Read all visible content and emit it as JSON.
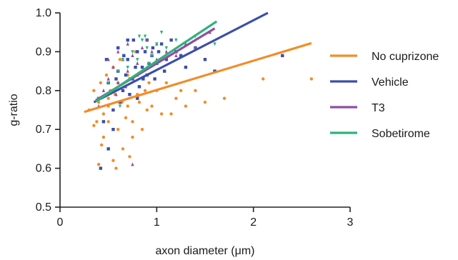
{
  "chart_data": {
    "type": "scatter",
    "xlabel": "axon diameter (μm)",
    "ylabel": "g-ratio",
    "xlim": [
      0,
      3
    ],
    "ylim": [
      0.5,
      1.0
    ],
    "xticks": [
      "0",
      "1",
      "2",
      "3"
    ],
    "yticks": [
      "0.5",
      "0.6",
      "0.7",
      "0.8",
      "0.9",
      "1.0"
    ],
    "grid": false,
    "legend_position": "right",
    "series": [
      {
        "name": "No cuprizone",
        "color": "#f28c28",
        "marker": "circle",
        "fit": {
          "x": [
            0.25,
            2.6
          ],
          "y": [
            0.745,
            0.922
          ]
        },
        "points": [
          [
            0.3,
            0.75
          ],
          [
            0.35,
            0.8
          ],
          [
            0.4,
            0.61
          ],
          [
            0.38,
            0.72
          ],
          [
            0.45,
            0.68
          ],
          [
            0.5,
            0.78
          ],
          [
            0.55,
            0.62
          ],
          [
            0.5,
            0.72
          ],
          [
            0.6,
            0.82
          ],
          [
            0.65,
            0.65
          ],
          [
            0.7,
            0.76
          ],
          [
            0.75,
            0.72
          ],
          [
            0.8,
            0.79
          ],
          [
            0.85,
            0.7
          ],
          [
            0.9,
            0.75
          ],
          [
            1.0,
            0.8
          ],
          [
            1.05,
            0.74
          ],
          [
            1.1,
            0.82
          ],
          [
            1.2,
            0.78
          ],
          [
            1.3,
            0.76
          ],
          [
            1.4,
            0.8
          ],
          [
            1.5,
            0.77
          ],
          [
            1.6,
            0.85
          ],
          [
            1.7,
            0.78
          ],
          [
            2.1,
            0.83
          ],
          [
            2.6,
            0.83
          ],
          [
            0.42,
            0.82
          ],
          [
            0.48,
            0.84
          ],
          [
            0.55,
            0.86
          ],
          [
            0.62,
            0.88
          ],
          [
            0.7,
            0.84
          ],
          [
            0.78,
            0.9
          ],
          [
            0.4,
            0.77
          ],
          [
            0.45,
            0.74
          ],
          [
            0.52,
            0.8
          ],
          [
            0.6,
            0.7
          ],
          [
            0.68,
            0.73
          ],
          [
            0.75,
            0.68
          ],
          [
            0.82,
            0.77
          ],
          [
            0.88,
            0.8
          ],
          [
            0.95,
            0.76
          ],
          [
            1.15,
            0.74
          ],
          [
            1.25,
            0.8
          ],
          [
            0.35,
            0.71
          ],
          [
            0.43,
            0.66
          ],
          [
            0.58,
            0.6
          ],
          [
            0.72,
            0.63
          ],
          [
            0.92,
            0.82
          ],
          [
            1.08,
            0.85
          ],
          [
            0.5,
            0.76
          ],
          [
            0.57,
            0.79
          ],
          [
            0.64,
            0.77
          ]
        ]
      },
      {
        "name": "Vehicle",
        "color": "#3a4fa8",
        "marker": "square",
        "fit": {
          "x": [
            0.35,
            2.15
          ],
          "y": [
            0.77,
            1.0
          ]
        },
        "points": [
          [
            0.4,
            0.78
          ],
          [
            0.45,
            0.72
          ],
          [
            0.5,
            0.82
          ],
          [
            0.55,
            0.75
          ],
          [
            0.6,
            0.85
          ],
          [
            0.65,
            0.8
          ],
          [
            0.7,
            0.88
          ],
          [
            0.75,
            0.83
          ],
          [
            0.8,
            0.9
          ],
          [
            0.85,
            0.86
          ],
          [
            0.9,
            0.84
          ],
          [
            0.95,
            0.89
          ],
          [
            1.0,
            0.87
          ],
          [
            1.05,
            0.92
          ],
          [
            1.1,
            0.88
          ],
          [
            1.2,
            0.9
          ],
          [
            1.3,
            0.86
          ],
          [
            1.4,
            0.91
          ],
          [
            1.5,
            0.88
          ],
          [
            1.6,
            0.85
          ],
          [
            2.3,
            0.89
          ],
          [
            0.42,
            0.6
          ],
          [
            0.5,
            0.65
          ],
          [
            0.55,
            0.7
          ],
          [
            0.62,
            0.77
          ],
          [
            0.68,
            0.84
          ],
          [
            0.72,
            0.79
          ],
          [
            0.78,
            0.86
          ],
          [
            0.82,
            0.81
          ],
          [
            0.88,
            0.9
          ],
          [
            0.92,
            0.87
          ],
          [
            0.98,
            0.83
          ],
          [
            1.02,
            0.9
          ],
          [
            1.08,
            0.85
          ],
          [
            1.15,
            0.93
          ],
          [
            1.25,
            0.89
          ],
          [
            0.6,
            0.91
          ],
          [
            0.7,
            0.93
          ],
          [
            0.8,
            0.78
          ],
          [
            0.9,
            0.93
          ],
          [
            0.48,
            0.88
          ],
          [
            0.58,
            0.83
          ],
          [
            0.66,
            0.89
          ],
          [
            0.76,
            0.93
          ],
          [
            0.86,
            0.83
          ],
          [
            0.96,
            0.91
          ]
        ]
      },
      {
        "name": "T3",
        "color": "#8e4fa3",
        "marker": "triangle-up",
        "fit": {
          "x": [
            0.37,
            1.6
          ],
          "y": [
            0.775,
            0.96
          ]
        },
        "points": [
          [
            0.4,
            0.76
          ],
          [
            0.45,
            0.8
          ],
          [
            0.5,
            0.83
          ],
          [
            0.55,
            0.86
          ],
          [
            0.6,
            0.82
          ],
          [
            0.65,
            0.88
          ],
          [
            0.7,
            0.85
          ],
          [
            0.75,
            0.89
          ],
          [
            0.8,
            0.87
          ],
          [
            0.85,
            0.91
          ],
          [
            0.9,
            0.86
          ],
          [
            0.95,
            0.9
          ],
          [
            1.0,
            0.88
          ],
          [
            1.1,
            0.9
          ],
          [
            1.2,
            0.89
          ],
          [
            1.3,
            0.92
          ],
          [
            1.4,
            0.91
          ],
          [
            1.55,
            0.95
          ],
          [
            0.75,
            0.61
          ],
          [
            0.5,
            0.88
          ],
          [
            0.6,
            0.9
          ],
          [
            0.7,
            0.92
          ],
          [
            0.8,
            0.84
          ],
          [
            0.9,
            0.93
          ],
          [
            1.0,
            0.92
          ],
          [
            0.58,
            0.79
          ],
          [
            0.68,
            0.81
          ]
        ]
      },
      {
        "name": "Sobetirome",
        "color": "#2db37a",
        "marker": "triangle-down",
        "fit": {
          "x": [
            0.37,
            1.62
          ],
          "y": [
            0.772,
            0.978
          ]
        },
        "points": [
          [
            0.4,
            0.78
          ],
          [
            0.5,
            0.82
          ],
          [
            0.6,
            0.85
          ],
          [
            0.65,
            0.88
          ],
          [
            0.7,
            0.86
          ],
          [
            0.75,
            0.9
          ],
          [
            0.8,
            0.88
          ],
          [
            0.85,
            0.93
          ],
          [
            0.9,
            0.91
          ],
          [
            0.95,
            0.89
          ],
          [
            1.0,
            0.92
          ],
          [
            1.1,
            0.91
          ],
          [
            1.2,
            0.93
          ],
          [
            1.4,
            0.94
          ],
          [
            1.6,
            0.92
          ],
          [
            0.55,
            0.8
          ],
          [
            0.62,
            0.76
          ],
          [
            0.72,
            0.83
          ],
          [
            0.82,
            0.94
          ],
          [
            0.92,
            0.87
          ],
          [
            1.05,
            0.95
          ],
          [
            0.88,
            0.94
          ]
        ]
      }
    ]
  }
}
